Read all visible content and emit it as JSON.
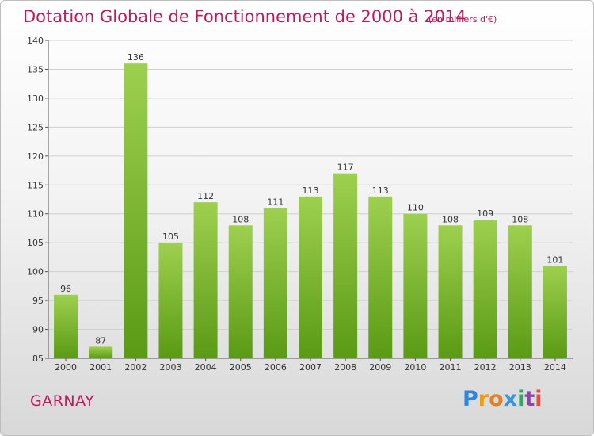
{
  "header": {
    "title": "Dotation Globale de Fonctionnement de 2000 à 2014",
    "unit": "(en milliers d'€)"
  },
  "footer": {
    "place": "GARNAY",
    "logo_letters": [
      "P",
      "r",
      "o",
      "x",
      "i",
      "t",
      "i"
    ],
    "logo_colors": [
      "#2e86de",
      "#f39c12",
      "#e67e22",
      "#3498db",
      "#27ae60",
      "#8e44ad",
      "#e74c3c"
    ]
  },
  "colors": {
    "bar_top": "#9ed04f",
    "bar_bottom": "#5a9a14",
    "title": "#c2185b",
    "grid": "#d0d0d0"
  },
  "chart_data": {
    "type": "bar",
    "title": "Dotation Globale de Fonctionnement de 2000 à 2014",
    "subtitle": "(en milliers d'€)",
    "categories": [
      "2000",
      "2001",
      "2002",
      "2003",
      "2004",
      "2005",
      "2006",
      "2007",
      "2008",
      "2009",
      "2010",
      "2011",
      "2012",
      "2013",
      "2014"
    ],
    "values": [
      96,
      87,
      136,
      105,
      112,
      108,
      111,
      113,
      117,
      113,
      110,
      108,
      109,
      108,
      101
    ],
    "ylim": [
      85,
      140
    ],
    "yticks": [
      85,
      90,
      95,
      100,
      105,
      110,
      115,
      120,
      125,
      130,
      135,
      140
    ],
    "grid": true,
    "xlabel": "",
    "ylabel": ""
  }
}
